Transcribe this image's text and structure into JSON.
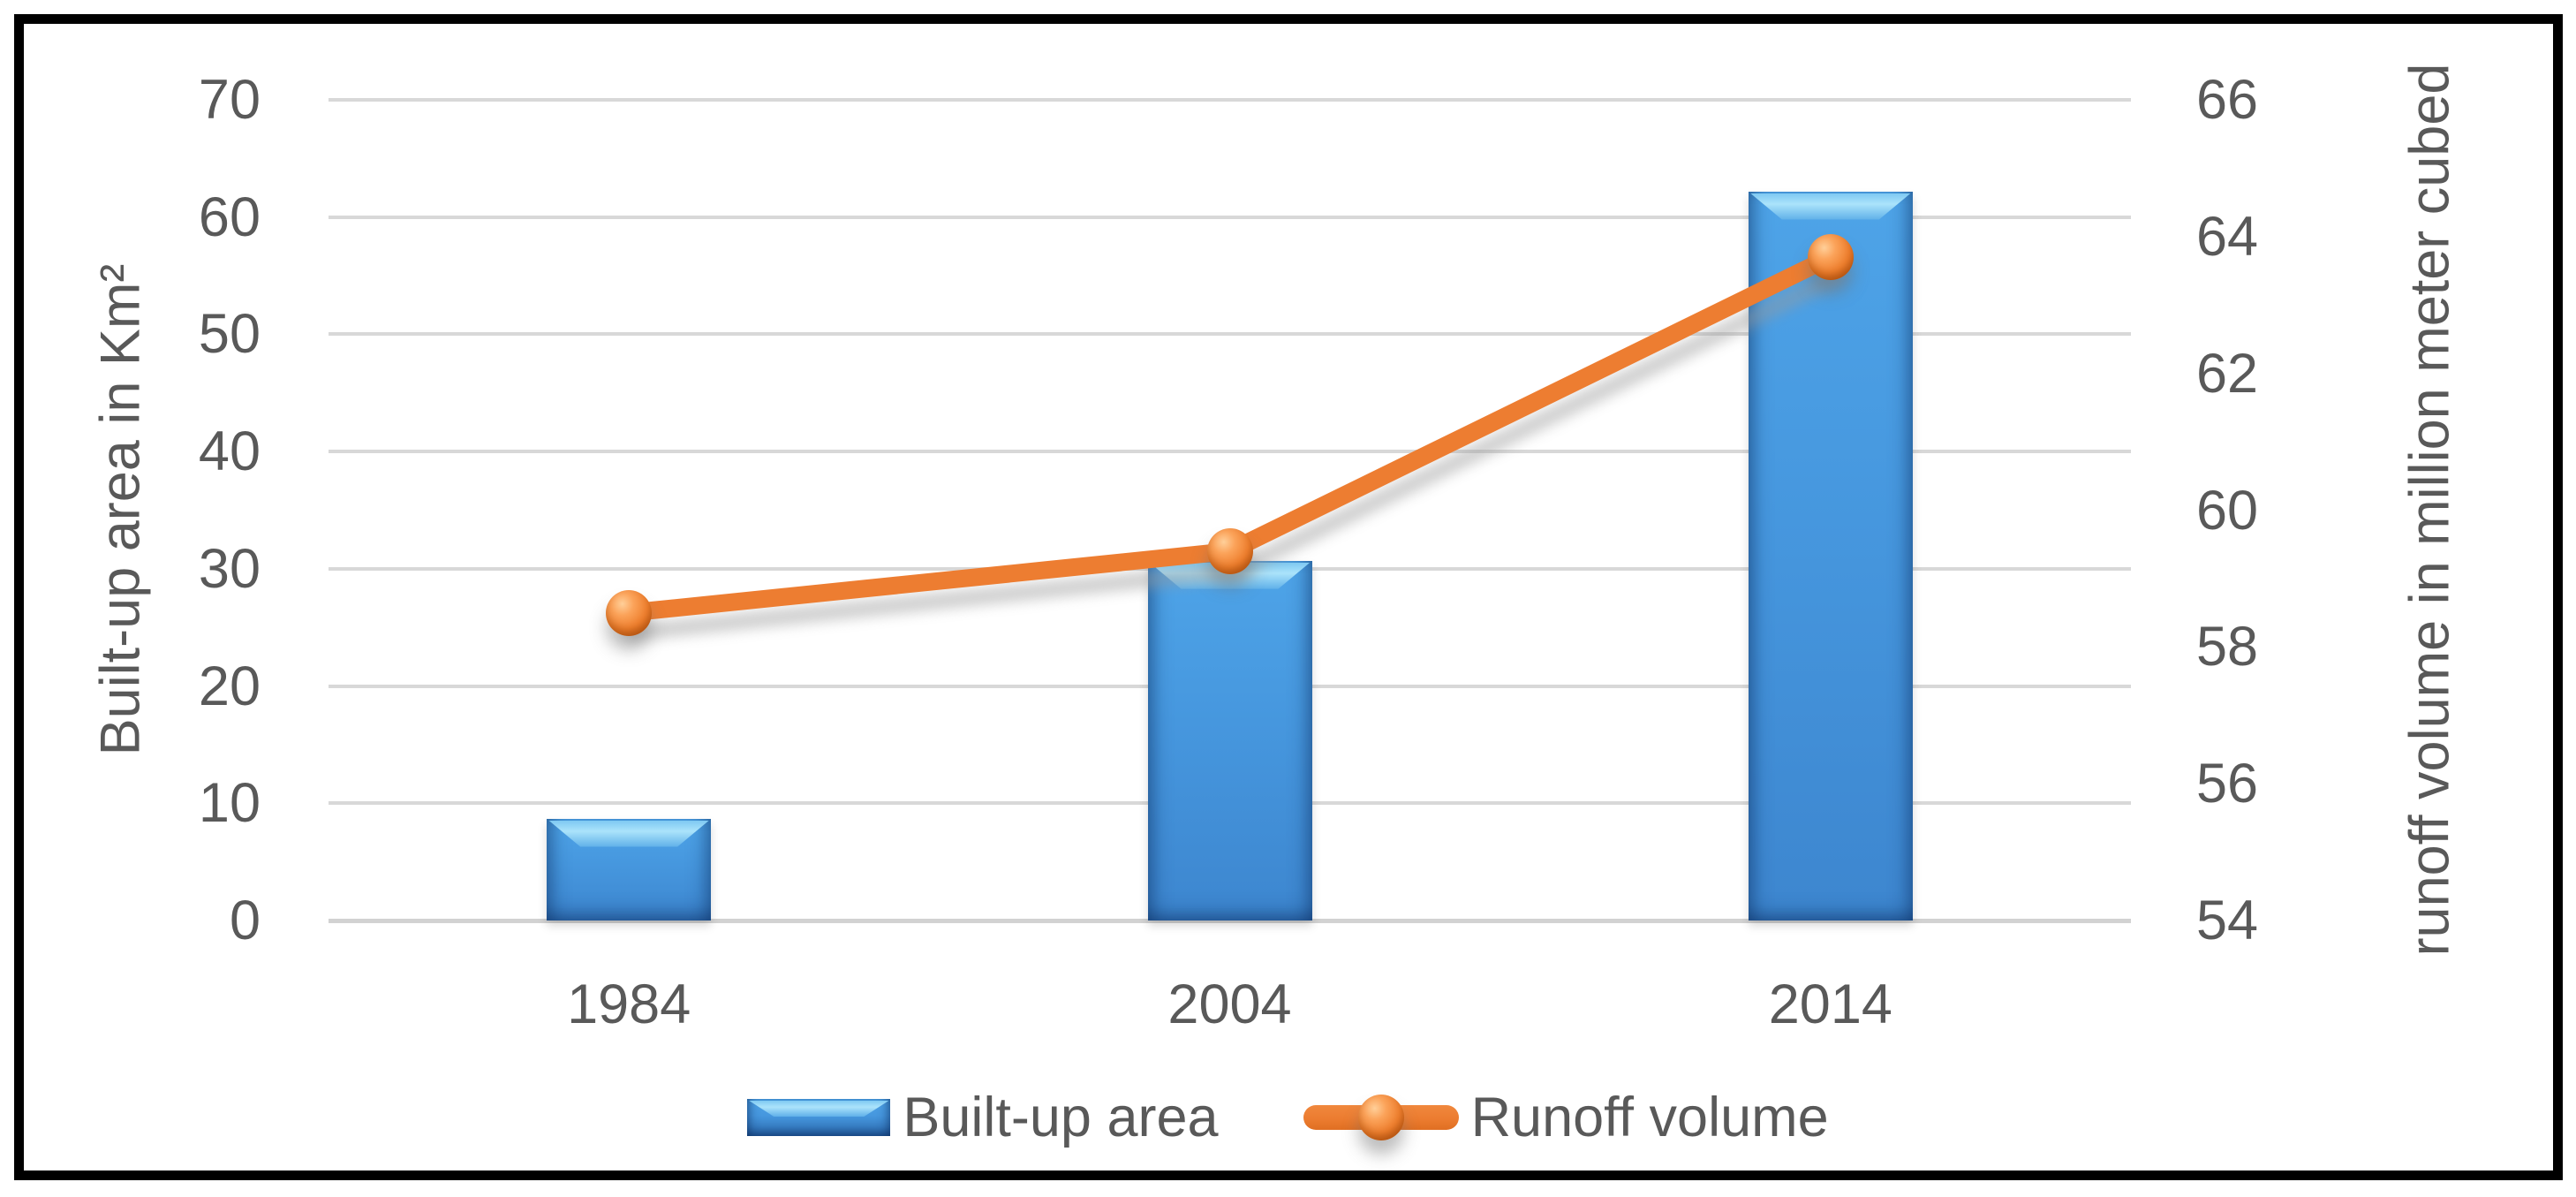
{
  "chart_data": {
    "type": "combo_bar_line",
    "categories": [
      "1984",
      "2004",
      "2014"
    ],
    "series": [
      {
        "name": "Built-up area",
        "type": "bar",
        "axis": "left",
        "values": [
          8.7,
          30.7,
          62.2
        ],
        "color": "#4697de"
      },
      {
        "name": "Runoff volume",
        "type": "line",
        "axis": "right",
        "values": [
          58.5,
          59.4,
          63.7
        ],
        "color": "#ed7d31"
      }
    ],
    "left_axis": {
      "title": "Built-up area in Km²",
      "min": 0,
      "max": 70,
      "step": 10,
      "ticks": [
        "70",
        "60",
        "50",
        "40",
        "30",
        "20",
        "10",
        "0"
      ]
    },
    "right_axis": {
      "title": "runoff volume in million meter cubed",
      "min": 54,
      "max": 66,
      "step": 2,
      "ticks": [
        "66",
        "64",
        "62",
        "60",
        "58",
        "56",
        "54"
      ]
    },
    "grid": true,
    "legend_position": "bottom",
    "colors": {
      "bar_fill": "#4697de",
      "bar_highlight": "#abe3fb",
      "line": "#ed7d31",
      "gridline": "#d8d8d8",
      "text": "#595959",
      "border": "#000000"
    }
  }
}
